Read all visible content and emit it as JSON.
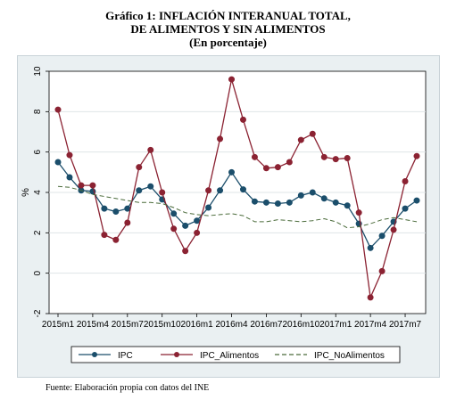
{
  "title_lines": [
    "Gráfico 1: INFLACIÓN INTERANUAL TOTAL,",
    "DE ALIMENTOS Y SIN ALIMENTOS",
    "(En porcentaje)"
  ],
  "source": "Fuente: Elaboración propia con datos del INE",
  "colors": {
    "ipc": "#1b4e6b",
    "ipc_alimentos": "#8b2232",
    "ipc_noalimentos": "#4a6b3a",
    "plot_bg": "#ffffff",
    "frame_bg": "#eaf0f2",
    "grid": "#dfe4e7"
  },
  "chart_data": {
    "type": "line",
    "title": "Gráfico 1: INFLACIÓN INTERANUAL TOTAL, DE ALIMENTOS Y SIN ALIMENTOS (En porcentaje)",
    "xlabel": "",
    "ylabel": "%",
    "ylim": [
      -2,
      10
    ],
    "yticks": [
      -2,
      0,
      2,
      4,
      6,
      8,
      10
    ],
    "x": [
      "2015m1",
      "2015m2",
      "2015m3",
      "2015m4",
      "2015m5",
      "2015m6",
      "2015m7",
      "2015m8",
      "2015m9",
      "2015m10",
      "2015m11",
      "2015m12",
      "2016m1",
      "2016m2",
      "2016m3",
      "2016m4",
      "2016m5",
      "2016m6",
      "2016m7",
      "2016m8",
      "2016m9",
      "2016m10",
      "2016m11",
      "2016m12",
      "2017m1",
      "2017m2",
      "2017m3",
      "2017m4",
      "2017m5",
      "2017m6",
      "2017m7",
      "2017m8"
    ],
    "xtick_labels": [
      "2015m1",
      "2015m4",
      "2015m7",
      "2015m10",
      "2016m1",
      "2016m4",
      "2016m7",
      "2016m10",
      "2017m1",
      "2017m4",
      "2017m7"
    ],
    "grid": true,
    "legend_position": "bottom",
    "series": [
      {
        "name": "IPC",
        "style": "solid-markers",
        "values": [
          5.5,
          4.75,
          4.1,
          4.05,
          3.2,
          3.05,
          3.2,
          4.1,
          4.3,
          3.65,
          2.95,
          2.35,
          2.6,
          3.25,
          4.1,
          5.0,
          4.15,
          3.55,
          3.5,
          3.45,
          3.5,
          3.85,
          4.0,
          3.7,
          3.5,
          3.35,
          2.45,
          1.25,
          1.85,
          2.55,
          3.2,
          3.6
        ]
      },
      {
        "name": "IPC_Alimentos",
        "style": "solid-markers",
        "values": [
          8.1,
          5.85,
          4.35,
          4.35,
          1.9,
          1.65,
          2.5,
          5.25,
          6.1,
          4.0,
          2.2,
          1.1,
          2.0,
          4.1,
          6.65,
          9.6,
          7.6,
          5.75,
          5.2,
          5.25,
          5.5,
          6.6,
          6.9,
          5.75,
          5.65,
          5.7,
          3.0,
          -1.2,
          0.1,
          2.15,
          4.55,
          5.8
        ]
      },
      {
        "name": "IPC_NoAlimentos",
        "style": "dashed",
        "values": [
          4.3,
          4.25,
          4.1,
          3.9,
          3.8,
          3.7,
          3.6,
          3.5,
          3.5,
          3.45,
          3.25,
          3.0,
          2.9,
          2.85,
          2.9,
          2.95,
          2.85,
          2.55,
          2.55,
          2.65,
          2.6,
          2.55,
          2.6,
          2.7,
          2.55,
          2.25,
          2.3,
          2.45,
          2.65,
          2.75,
          2.65,
          2.55
        ]
      }
    ]
  }
}
